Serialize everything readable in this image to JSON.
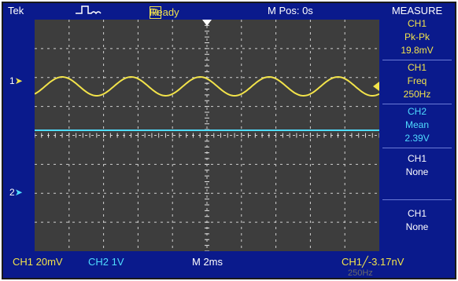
{
  "topbar": {
    "brand": "Tek",
    "run_state_box": "R",
    "run_state": "Ready",
    "m_pos": "M Pos: 0s"
  },
  "markers": {
    "ch1": "1",
    "ch2": "2"
  },
  "measure": {
    "title": "MEASURE",
    "items": [
      {
        "source": "CH1",
        "type": "Pk-Pk",
        "value": "19.8mV"
      },
      {
        "source": "CH1",
        "type": "Freq",
        "value": "250Hz"
      },
      {
        "source": "CH2",
        "type": "Mean",
        "value": "2.39V"
      },
      {
        "source": "CH1",
        "type": "None",
        "value": ""
      },
      {
        "source": "CH1",
        "type": "None",
        "value": ""
      }
    ]
  },
  "bottombar": {
    "ch1_scale": "CH1  20mV",
    "ch2_scale": "CH2  1V",
    "timebase": "M 2ms",
    "trigger": "CH1╱-3.17nV",
    "trig_freq": "250Hz"
  },
  "colors": {
    "ch1": "#f2e34a",
    "ch2": "#4fdcff",
    "bezel": "#0a1a8c",
    "screen": "#3d3d3d"
  }
}
